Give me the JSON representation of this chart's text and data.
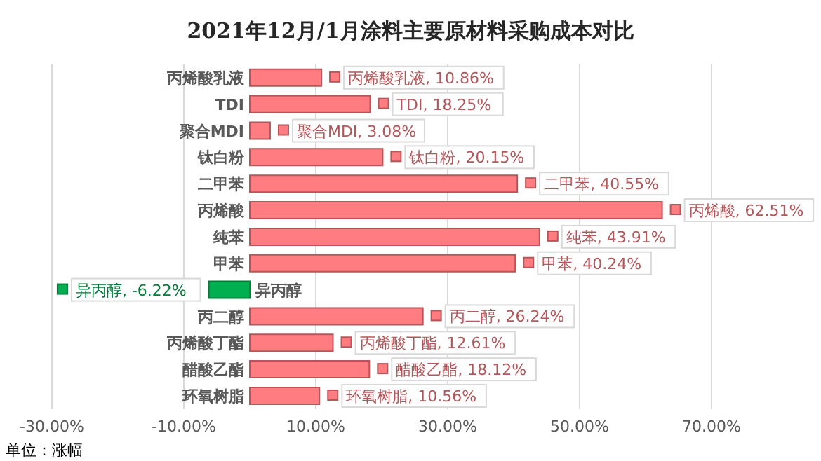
{
  "chart_data": {
    "type": "bar",
    "orientation": "horizontal",
    "title": "2021年12月/1月涂料主要原材料采购成本对比",
    "annotations": [
      "单位：涨幅"
    ],
    "categories": [
      "丙烯酸乳液",
      "TDI",
      "聚合MDI",
      "钛白粉",
      "二甲苯",
      "丙烯酸",
      "纯苯",
      "甲苯",
      "异丙醇",
      "丙二醇",
      "丙烯酸丁酯",
      "醋酸乙酯",
      "环氧树脂"
    ],
    "values": [
      10.86,
      18.25,
      3.08,
      20.15,
      40.55,
      62.51,
      43.91,
      40.24,
      -6.22,
      26.24,
      12.61,
      18.12,
      10.56
    ],
    "colors": [
      "#ff7c80",
      "#ff7c80",
      "#ff7c80",
      "#ff7c80",
      "#ff7c80",
      "#ff7c80",
      "#ff7c80",
      "#ff7c80",
      "#00b050",
      "#ff7c80",
      "#ff7c80",
      "#ff7c80",
      "#ff7c80"
    ],
    "value_labels": [
      "丙烯酸乳液, 10.86%",
      "TDI, 18.25%",
      "聚合MDI, 3.08%",
      "钛白粉, 20.15%",
      "二甲苯, 40.55%",
      "丙烯酸, 62.51%",
      "纯苯, 43.91%",
      "甲苯, 40.24%",
      "异丙醇, -6.22%",
      "丙二醇, 26.24%",
      "丙烯酸丁酯, 12.61%",
      "醋酸乙酯, 18.12%",
      "环氧树脂, 10.56%"
    ],
    "xlim": [
      -30,
      70
    ],
    "xticks": [
      {
        "value": -30,
        "label": "-30.00%"
      },
      {
        "value": -10,
        "label": "-10.00%"
      },
      {
        "value": 10,
        "label": "10.00%"
      },
      {
        "value": 30,
        "label": "30.00%"
      },
      {
        "value": 50,
        "label": "50.00%"
      },
      {
        "value": 70,
        "label": "70.00%"
      }
    ],
    "grid": "x",
    "legend": false
  }
}
